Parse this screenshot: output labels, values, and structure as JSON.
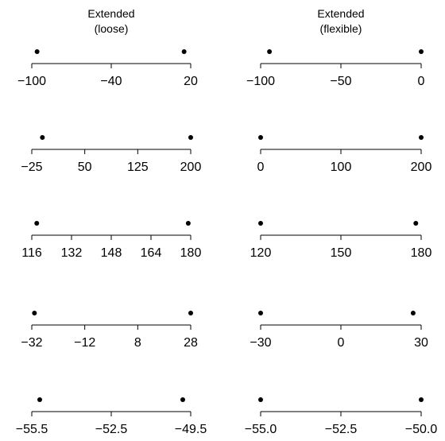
{
  "chart_data": [
    {
      "type": "scatter",
      "title": [
        "Extended",
        "(loose)"
      ],
      "x": [
        -96,
        15
      ],
      "ylim": null,
      "xlim": [
        -100,
        20
      ],
      "ticks": [
        -100,
        -40,
        20
      ],
      "tick_labels": [
        "−100",
        "−40",
        "20"
      ]
    },
    {
      "type": "scatter",
      "title": [
        "Extended",
        "(flexible)"
      ],
      "x": [
        -94.5,
        0
      ],
      "xlim": [
        -100,
        0
      ],
      "ticks": [
        -100,
        -50,
        0
      ],
      "tick_labels": [
        "−100",
        "−50",
        "0"
      ]
    },
    {
      "type": "scatter",
      "title": [],
      "x": [
        -10,
        200
      ],
      "xlim": [
        -25,
        200
      ],
      "ticks": [
        -25,
        50,
        125,
        200
      ],
      "tick_labels": [
        "−25",
        "50",
        "125",
        "200"
      ]
    },
    {
      "type": "scatter",
      "title": [],
      "x": [
        0,
        200
      ],
      "xlim": [
        0,
        200
      ],
      "ticks": [
        0,
        100,
        200
      ],
      "tick_labels": [
        "0",
        "100",
        "200"
      ]
    },
    {
      "type": "scatter",
      "title": [],
      "x": [
        118,
        179
      ],
      "xlim": [
        116,
        180
      ],
      "ticks": [
        116,
        132,
        148,
        164,
        180
      ],
      "tick_labels": [
        "116",
        "132",
        "148",
        "164",
        "180"
      ]
    },
    {
      "type": "scatter",
      "title": [],
      "x": [
        120,
        178
      ],
      "xlim": [
        120,
        180
      ],
      "ticks": [
        120,
        150,
        180
      ],
      "tick_labels": [
        "120",
        "150",
        "180"
      ]
    },
    {
      "type": "scatter",
      "title": [],
      "x": [
        -31,
        28
      ],
      "xlim": [
        -32,
        28
      ],
      "ticks": [
        -32,
        -12,
        8,
        28
      ],
      "tick_labels": [
        "−32",
        "−12",
        "8",
        "28"
      ]
    },
    {
      "type": "scatter",
      "title": [],
      "x": [
        -30,
        27
      ],
      "xlim": [
        -30,
        30
      ],
      "ticks": [
        -30,
        0,
        30
      ],
      "tick_labels": [
        "−30",
        "0",
        "30"
      ]
    },
    {
      "type": "scatter",
      "title": [],
      "x": [
        -55.2,
        -49.8
      ],
      "xlim": [
        -55.5,
        -49.5
      ],
      "ticks": [
        -55.5,
        -52.5,
        -49.5
      ],
      "tick_labels": [
        "−55.5",
        "−52.5",
        "−49.5"
      ]
    },
    {
      "type": "scatter",
      "title": [],
      "x": [
        -55,
        -50
      ],
      "xlim": [
        -55,
        -50
      ],
      "ticks": [
        -55,
        -52.5,
        -50
      ],
      "tick_labels": [
        "−55.0",
        "−52.5",
        "−50.0"
      ]
    }
  ]
}
